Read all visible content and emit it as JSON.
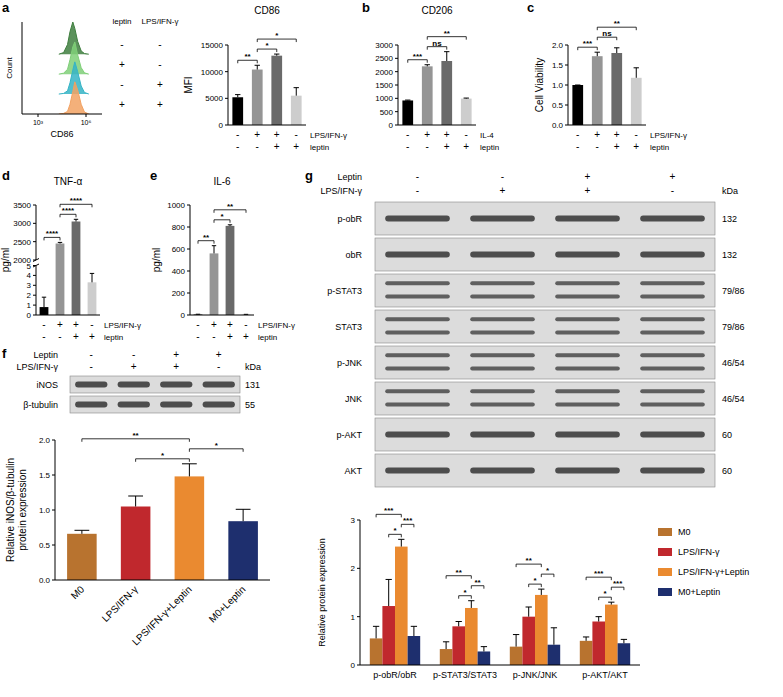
{
  "chart_data": [
    {
      "type": "line",
      "panel_label": "a",
      "x_label": "CD86",
      "y_label": "Count",
      "log": "x",
      "tick_labels": "x",
      "xlim": [
        100,
        10000000
      ],
      "xticks": [
        {
          "value": 1000,
          "label": "10³"
        },
        {
          "value": 1000000,
          "label": "10⁶"
        }
      ],
      "ylim": [
        0,
        100
      ],
      "x": [
        20000,
        40000,
        70000,
        100000,
        150000,
        200000,
        300000,
        500000,
        800000,
        1500000
      ],
      "series": [
        {
          "color": "#3f7f3f",
          "values": [
            0,
            5,
            30,
            70,
            100,
            80,
            40,
            10,
            2,
            0
          ]
        },
        {
          "color": "#7fcf78",
          "values": [
            0,
            3,
            15,
            45,
            85,
            100,
            60,
            20,
            4,
            0
          ]
        },
        {
          "color": "#35b4c6",
          "values": [
            0,
            2,
            10,
            35,
            75,
            100,
            70,
            25,
            5,
            0
          ]
        },
        {
          "color": "#f2a263",
          "values": [
            0,
            2,
            8,
            30,
            70,
            100,
            75,
            30,
            6,
            0
          ]
        }
      ],
      "conditions": {
        "columns": [
          "leptin",
          "LPS/IFN-γ"
        ],
        "rows": [
          [
            "-",
            "-"
          ],
          [
            "+",
            "-"
          ],
          [
            "-",
            "+"
          ],
          [
            "+",
            "+"
          ]
        ]
      }
    },
    {
      "type": "bar",
      "title": "CD86",
      "y_label": "MFI",
      "categories": [
        null,
        null,
        null,
        null
      ],
      "values": [
        5200,
        10400,
        13000,
        5500
      ],
      "errors": [
        500,
        800,
        300,
        1500
      ],
      "colors": [
        "#000000",
        "#959595",
        "#6a6a6a",
        "#cdcdcd"
      ],
      "ylim": [
        0,
        15000
      ],
      "yticks": [
        0,
        5000,
        10000,
        15000
      ],
      "conditions": [
        {
          "name": "LPS/IFN-γ",
          "values": [
            "-",
            "+",
            "+",
            "-"
          ]
        },
        {
          "name": "leptin",
          "values": [
            "-",
            "-",
            "+",
            "+"
          ]
        }
      ],
      "annotations": [
        {
          "pair": [
            0,
            1
          ],
          "text": "**"
        },
        {
          "pair": [
            1,
            2
          ],
          "text": "*"
        },
        {
          "pair": [
            1,
            3
          ],
          "text": "*"
        }
      ]
    },
    {
      "type": "bar",
      "panel_label": "b",
      "title": "CD206",
      "categories": [
        null,
        null,
        null,
        null
      ],
      "values": [
        920,
        2200,
        2400,
        990
      ],
      "errors": [
        15,
        60,
        350,
        20
      ],
      "colors": [
        "#000000",
        "#959595",
        "#6a6a6a",
        "#cdcdcd"
      ],
      "ylim": [
        0,
        3000
      ],
      "yticks": [
        0,
        500,
        1000,
        1500,
        2000,
        2500,
        3000
      ],
      "conditions": [
        {
          "name": "IL-4",
          "values": [
            "-",
            "+",
            "+",
            "-"
          ]
        },
        {
          "name": "leptin",
          "values": [
            "-",
            "-",
            "+",
            "+"
          ]
        }
      ],
      "annotations": [
        {
          "pair": [
            0,
            1
          ],
          "text": "***"
        },
        {
          "pair": [
            1,
            2
          ],
          "text": "ns"
        },
        {
          "pair": [
            1,
            3
          ],
          "text": "**"
        }
      ]
    },
    {
      "type": "bar",
      "panel_label": "c",
      "y_label": "Cell Viability",
      "categories": [
        null,
        null,
        null,
        null
      ],
      "values": [
        1.0,
        1.72,
        1.8,
        1.18
      ],
      "errors": [
        0,
        0.1,
        0.13,
        0.25
      ],
      "colors": [
        "#000000",
        "#959595",
        "#6a6a6a",
        "#cdcdcd"
      ],
      "ylim": [
        0,
        2
      ],
      "yticks": [
        {
          "value": 0,
          "label": "0.0"
        },
        {
          "value": 0.5,
          "label": "0.5"
        },
        {
          "value": 1,
          "label": "1.0"
        },
        {
          "value": 1.5,
          "label": "1.5"
        },
        {
          "value": 2,
          "label": "2.0"
        }
      ],
      "conditions": [
        {
          "name": "LPS/IFN-γ",
          "values": [
            "-",
            "+",
            "+",
            "-"
          ]
        },
        {
          "name": "leptin",
          "values": [
            "-",
            "-",
            "+",
            "+"
          ]
        }
      ],
      "annotations": [
        {
          "pair": [
            0,
            1
          ],
          "text": "***"
        },
        {
          "pair": [
            1,
            2
          ],
          "text": "ns"
        },
        {
          "pair": [
            1,
            3
          ],
          "text": "**"
        }
      ]
    },
    {
      "type": "bar",
      "panel_label": "d",
      "title": "TNF-α",
      "y_label": "pg/ml",
      "categories": [
        null,
        null,
        null,
        null
      ],
      "values": [
        0.8,
        2450,
        3050,
        3.3
      ],
      "errors": [
        1.0,
        30,
        60,
        0.9
      ],
      "colors": [
        "#000000",
        "#959595",
        "#6a6a6a",
        "#cdcdcd"
      ],
      "ylim": [
        0,
        3500
      ],
      "y_break": [
        5,
        2000
      ],
      "yticks": [
        0,
        1,
        2,
        3,
        4,
        5,
        2000,
        2500,
        3000,
        3500
      ],
      "conditions": [
        {
          "name": "LPS/IFN-γ",
          "values": [
            "-",
            "+",
            "+",
            "-"
          ]
        },
        {
          "name": "leptin",
          "values": [
            "-",
            "-",
            "+",
            "+"
          ]
        }
      ],
      "annotations": [
        {
          "pair": [
            0,
            1
          ],
          "text": "****"
        },
        {
          "pair": [
            1,
            2
          ],
          "text": "****"
        },
        {
          "pair": [
            1,
            3
          ],
          "text": "****"
        }
      ]
    },
    {
      "type": "bar",
      "panel_label": "e",
      "title": "IL-6",
      "y_label": "pg/ml",
      "categories": [
        null,
        null,
        null,
        null
      ],
      "values": [
        4,
        560,
        810,
        4
      ],
      "errors": [
        3,
        70,
        10,
        2
      ],
      "colors": [
        "#000000",
        "#959595",
        "#6a6a6a",
        "#cdcdcd"
      ],
      "ylim": [
        0,
        1000
      ],
      "yticks": [
        0,
        200,
        400,
        600,
        800,
        1000
      ],
      "conditions": [
        {
          "name": "LPS/IFN-γ",
          "values": [
            "-",
            "+",
            "+",
            "-"
          ]
        },
        {
          "name": "leptin",
          "values": [
            "-",
            "-",
            "+",
            "+"
          ]
        }
      ],
      "annotations": [
        {
          "pair": [
            0,
            1
          ],
          "text": "**"
        },
        {
          "pair": [
            1,
            2
          ],
          "text": "*"
        },
        {
          "pair": [
            1,
            3
          ],
          "text": "**"
        }
      ]
    },
    {
      "type": "bar",
      "y_label": "Relative iNOS/β-tubulin protein expression",
      "categories": [
        "M0",
        "LPS/IFN-γ",
        "LPS/IFN-γ+Leptin",
        "M0+Leptin"
      ],
      "values": [
        0.66,
        1.05,
        1.48,
        0.84
      ],
      "errors": [
        0.05,
        0.15,
        0.18,
        0.17
      ],
      "colors": [
        "#b8732f",
        "#c0282d",
        "#ea8a30",
        "#1e2f6e"
      ],
      "ylim": [
        0,
        2
      ],
      "yticks": [
        {
          "value": 0,
          "label": "0.0"
        },
        {
          "value": 0.5,
          "label": "0.5"
        },
        {
          "value": 1,
          "label": "1.0"
        },
        {
          "value": 1.5,
          "label": "1.5"
        },
        {
          "value": 2,
          "label": "2.0"
        }
      ],
      "annotations": [
        {
          "pair": [
            0,
            2
          ],
          "text": "**"
        },
        {
          "pair": [
            1,
            2
          ],
          "text": "*"
        },
        {
          "pair": [
            2,
            3
          ],
          "text": "*"
        }
      ]
    },
    {
      "type": "bar",
      "y_label": "Relative protein expression",
      "legend": "right",
      "categories": [
        "p-obR/obR",
        "p-STAT3/STAT3",
        "p-JNK/JNK",
        "p-AKT/AKT"
      ],
      "series": [
        {
          "name": "M0",
          "color": "#b8732f",
          "values": [
            0.55,
            0.33,
            0.38,
            0.5
          ],
          "errors": [
            0.25,
            0.15,
            0.25,
            0.08
          ]
        },
        {
          "name": "LPS/IFN-γ",
          "color": "#c0282d",
          "values": [
            1.22,
            0.8,
            1.0,
            0.9
          ],
          "errors": [
            0.55,
            0.1,
            0.2,
            0.1
          ]
        },
        {
          "name": "LPS/IFN-γ+Leptin",
          "color": "#ea8a30",
          "values": [
            2.45,
            1.18,
            1.45,
            1.25
          ],
          "errors": [
            0.15,
            0.15,
            0.12,
            0.05
          ]
        },
        {
          "name": "M0+Leptin",
          "color": "#1e2f6e",
          "values": [
            0.6,
            0.28,
            0.42,
            0.45
          ],
          "errors": [
            0.2,
            0.1,
            0.35,
            0.08
          ]
        }
      ],
      "ylim": [
        0,
        3
      ],
      "yticks": [
        0,
        1,
        2,
        3
      ],
      "annotations": [
        {
          "category": 0,
          "pair": [
            0,
            2
          ],
          "text": "***"
        },
        {
          "category": 0,
          "pair": [
            1,
            2
          ],
          "text": "*"
        },
        {
          "category": 0,
          "pair": [
            2,
            3
          ],
          "text": "***"
        },
        {
          "category": 1,
          "pair": [
            0,
            2
          ],
          "text": "**"
        },
        {
          "category": 1,
          "pair": [
            1,
            2
          ],
          "text": "*"
        },
        {
          "category": 1,
          "pair": [
            2,
            3
          ],
          "text": "**"
        },
        {
          "category": 2,
          "pair": [
            0,
            2
          ],
          "text": "**"
        },
        {
          "category": 2,
          "pair": [
            1,
            2
          ],
          "text": "*"
        },
        {
          "category": 2,
          "pair": [
            2,
            3
          ],
          "text": "*"
        },
        {
          "category": 3,
          "pair": [
            0,
            2
          ],
          "text": "***"
        },
        {
          "category": 3,
          "pair": [
            1,
            2
          ],
          "text": "*"
        },
        {
          "category": 3,
          "pair": [
            2,
            3
          ],
          "text": "***"
        }
      ]
    }
  ],
  "blots": [
    {
      "panel_label": "f",
      "kda_label": "kDa",
      "conditions": [
        {
          "name": "Leptin",
          "values": [
            "-",
            "-",
            "+",
            "+"
          ]
        },
        {
          "name": "LPS/IFN-γ",
          "values": [
            "-",
            "+",
            "+",
            "-"
          ]
        }
      ],
      "bands": [
        {
          "name": "iNOS",
          "kda": "131"
        },
        {
          "name": "β-tubulin",
          "kda": "55"
        }
      ]
    },
    {
      "panel_label": "g",
      "kda_label": "kDa",
      "conditions": [
        {
          "name": "Leptin",
          "values": [
            "-",
            "-",
            "+",
            "+"
          ]
        },
        {
          "name": "LPS/IFN-γ",
          "values": [
            "-",
            "+",
            "+",
            "-"
          ]
        }
      ],
      "bands": [
        {
          "name": "p-obR",
          "kda": "132"
        },
        {
          "name": "obR",
          "kda": "132"
        },
        {
          "name": "p-STAT3",
          "kda": "79/86"
        },
        {
          "name": "STAT3",
          "kda": "79/86"
        },
        {
          "name": "p-JNK",
          "kda": "46/54"
        },
        {
          "name": "JNK",
          "kda": "46/54"
        },
        {
          "name": "p-AKT",
          "kda": "60"
        },
        {
          "name": "AKT",
          "kda": "60"
        }
      ]
    }
  ]
}
